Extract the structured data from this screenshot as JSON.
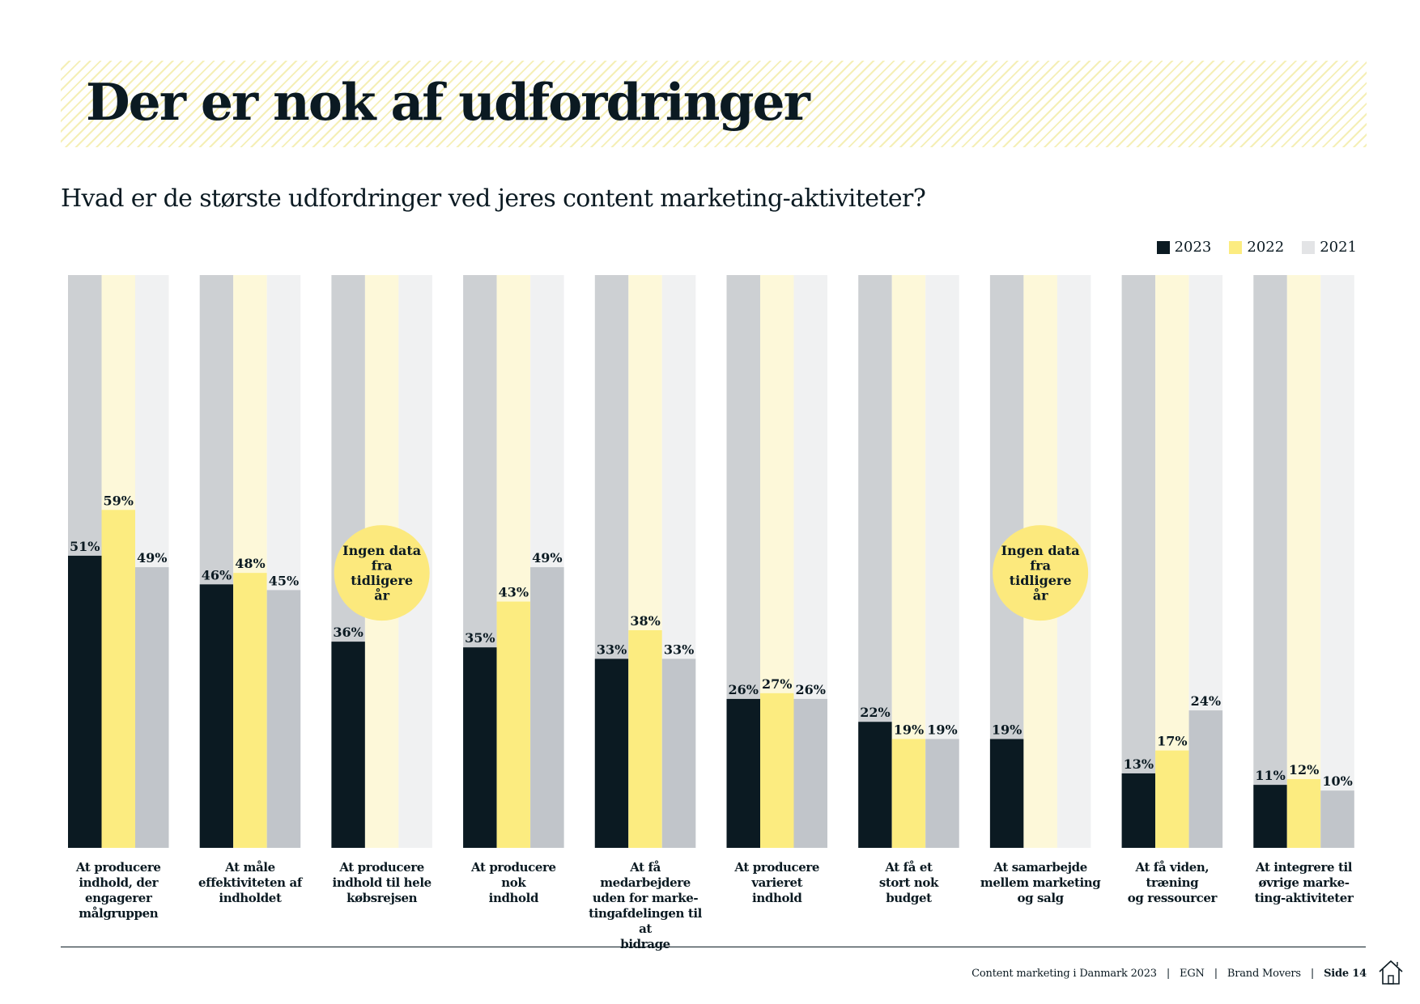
{
  "page": {
    "title": "Der er nok af udfordringer",
    "question": "Hvad er de største udfordringer ved jeres content marketing-aktiviteter?"
  },
  "colors": {
    "y2023": "#0b1a22",
    "y2022": "#fcec80",
    "y2021": "#c1c5ca",
    "bg2023": "#cdd0d3",
    "bg2022": "#fdf8d9",
    "bg2021": "#f0f1f2",
    "badge": "#fce97d"
  },
  "chart_data": {
    "type": "bar",
    "ylim": [
      0,
      100
    ],
    "legend": [
      "2023",
      "2022",
      "2021"
    ],
    "legend_position": "top-right",
    "no_data_text": [
      "Ingen data",
      "fra",
      "tidligere",
      "år"
    ],
    "categories": [
      [
        "At producere",
        "indhold, der",
        "engagerer",
        "målgruppen"
      ],
      [
        "At måle",
        "effektiviteten af",
        "indholdet"
      ],
      [
        "At producere",
        "indhold til hele",
        "købsrejsen"
      ],
      [
        "At producere",
        "nok",
        "indhold"
      ],
      [
        "At få medarbejdere",
        "uden for marke-",
        "tingafdelingen til at",
        "bidrage"
      ],
      [
        "At producere",
        "varieret",
        "indhold"
      ],
      [
        "At få et",
        "stort nok",
        "budget"
      ],
      [
        "At samarbejde",
        "mellem marketing",
        "og salg"
      ],
      [
        "At få viden, træning",
        "og ressourcer"
      ],
      [
        "At integrere til",
        "øvrige marke-",
        "ting-aktiviteter"
      ]
    ],
    "series": [
      {
        "name": "2023",
        "values": [
          51,
          46,
          36,
          35,
          33,
          26,
          22,
          19,
          13,
          11
        ]
      },
      {
        "name": "2022",
        "values": [
          59,
          48,
          null,
          43,
          38,
          27,
          19,
          null,
          17,
          12
        ]
      },
      {
        "name": "2021",
        "values": [
          49,
          45,
          null,
          49,
          33,
          26,
          19,
          null,
          24,
          10
        ]
      }
    ]
  },
  "footer": {
    "report": "Content marketing i Danmark 2023",
    "sep": "|",
    "org1": "EGN",
    "org2": "Brand Movers",
    "page": "Side 14"
  }
}
